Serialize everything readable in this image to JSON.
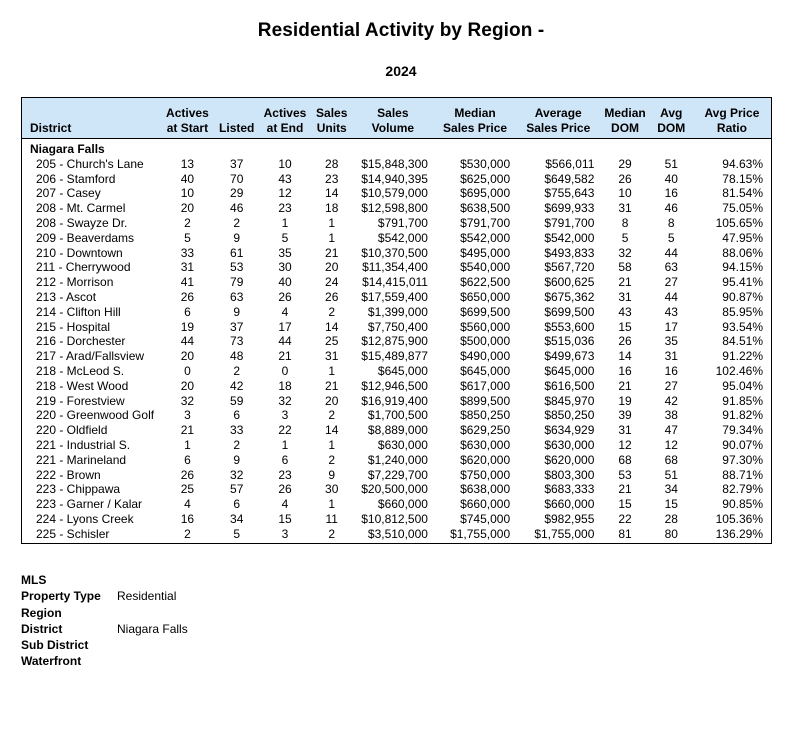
{
  "report": {
    "title": "Residential Activity by Region -",
    "year": "2024"
  },
  "table": {
    "headers": {
      "district": "District",
      "actives_start": [
        "Actives",
        "at Start"
      ],
      "listed": "Listed",
      "actives_end": [
        "Actives",
        "at End"
      ],
      "sales_units": [
        "Sales",
        "Units"
      ],
      "sales_volume": [
        "Sales",
        "Volume"
      ],
      "median_price": [
        "Median",
        "Sales Price"
      ],
      "avg_price": [
        "Average",
        "Sales Price"
      ],
      "median_dom": [
        "Median",
        "DOM"
      ],
      "avg_dom": [
        "Avg",
        "DOM"
      ],
      "avg_ratio": [
        "Avg Price",
        "Ratio"
      ]
    },
    "group": "Niagara Falls",
    "rows": [
      [
        "205 - Church's Lane",
        "13",
        "37",
        "10",
        "28",
        "$15,848,300",
        "$530,000",
        "$566,011",
        "29",
        "51",
        "94.63%"
      ],
      [
        "206 - Stamford",
        "40",
        "70",
        "43",
        "23",
        "$14,940,395",
        "$625,000",
        "$649,582",
        "26",
        "40",
        "78.15%"
      ],
      [
        "207 - Casey",
        "10",
        "29",
        "12",
        "14",
        "$10,579,000",
        "$695,000",
        "$755,643",
        "10",
        "16",
        "81.54%"
      ],
      [
        "208 - Mt. Carmel",
        "20",
        "46",
        "23",
        "18",
        "$12,598,800",
        "$638,500",
        "$699,933",
        "31",
        "46",
        "75.05%"
      ],
      [
        "208 - Swayze Dr.",
        "2",
        "2",
        "1",
        "1",
        "$791,700",
        "$791,700",
        "$791,700",
        "8",
        "8",
        "105.65%"
      ],
      [
        "209 - Beaverdams",
        "5",
        "9",
        "5",
        "1",
        "$542,000",
        "$542,000",
        "$542,000",
        "5",
        "5",
        "47.95%"
      ],
      [
        "210 - Downtown",
        "33",
        "61",
        "35",
        "21",
        "$10,370,500",
        "$495,000",
        "$493,833",
        "32",
        "44",
        "88.06%"
      ],
      [
        "211 - Cherrywood",
        "31",
        "53",
        "30",
        "20",
        "$11,354,400",
        "$540,000",
        "$567,720",
        "58",
        "63",
        "94.15%"
      ],
      [
        "212 - Morrison",
        "41",
        "79",
        "40",
        "24",
        "$14,415,011",
        "$622,500",
        "$600,625",
        "21",
        "27",
        "95.41%"
      ],
      [
        "213 - Ascot",
        "26",
        "63",
        "26",
        "26",
        "$17,559,400",
        "$650,000",
        "$675,362",
        "31",
        "44",
        "90.87%"
      ],
      [
        "214 - Clifton Hill",
        "6",
        "9",
        "4",
        "2",
        "$1,399,000",
        "$699,500",
        "$699,500",
        "43",
        "43",
        "85.95%"
      ],
      [
        "215 - Hospital",
        "19",
        "37",
        "17",
        "14",
        "$7,750,400",
        "$560,000",
        "$553,600",
        "15",
        "17",
        "93.54%"
      ],
      [
        "216 - Dorchester",
        "44",
        "73",
        "44",
        "25",
        "$12,875,900",
        "$500,000",
        "$515,036",
        "26",
        "35",
        "84.51%"
      ],
      [
        "217 - Arad/Fallsview",
        "20",
        "48",
        "21",
        "31",
        "$15,489,877",
        "$490,000",
        "$499,673",
        "14",
        "31",
        "91.22%"
      ],
      [
        "218 - McLeod S.",
        "0",
        "2",
        "0",
        "1",
        "$645,000",
        "$645,000",
        "$645,000",
        "16",
        "16",
        "102.46%"
      ],
      [
        "218 - West Wood",
        "20",
        "42",
        "18",
        "21",
        "$12,946,500",
        "$617,000",
        "$616,500",
        "21",
        "27",
        "95.04%"
      ],
      [
        "219 - Forestview",
        "32",
        "59",
        "32",
        "20",
        "$16,919,400",
        "$899,500",
        "$845,970",
        "19",
        "42",
        "91.85%"
      ],
      [
        "220 - Greenwood Golf",
        "3",
        "6",
        "3",
        "2",
        "$1,700,500",
        "$850,250",
        "$850,250",
        "39",
        "38",
        "91.82%"
      ],
      [
        "220 - Oldfield",
        "21",
        "33",
        "22",
        "14",
        "$8,889,000",
        "$629,250",
        "$634,929",
        "31",
        "47",
        "79.34%"
      ],
      [
        "221 - Industrial S.",
        "1",
        "2",
        "1",
        "1",
        "$630,000",
        "$630,000",
        "$630,000",
        "12",
        "12",
        "90.07%"
      ],
      [
        "221 - Marineland",
        "6",
        "9",
        "6",
        "2",
        "$1,240,000",
        "$620,000",
        "$620,000",
        "68",
        "68",
        "97.30%"
      ],
      [
        "222 - Brown",
        "26",
        "32",
        "23",
        "9",
        "$7,229,700",
        "$750,000",
        "$803,300",
        "53",
        "51",
        "88.71%"
      ],
      [
        "223 - Chippawa",
        "25",
        "57",
        "26",
        "30",
        "$20,500,000",
        "$638,000",
        "$683,333",
        "21",
        "34",
        "82.79%"
      ],
      [
        "223 - Garner / Kalar",
        "4",
        "6",
        "4",
        "1",
        "$660,000",
        "$660,000",
        "$660,000",
        "15",
        "15",
        "90.85%"
      ],
      [
        "224 - Lyons Creek",
        "16",
        "34",
        "15",
        "11",
        "$10,812,500",
        "$745,000",
        "$982,955",
        "22",
        "28",
        "105.36%"
      ],
      [
        "225 - Schisler",
        "2",
        "5",
        "3",
        "2",
        "$3,510,000",
        "$1,755,000",
        "$1,755,000",
        "81",
        "80",
        "136.29%"
      ]
    ]
  },
  "filters": [
    {
      "label": "MLS",
      "value": ""
    },
    {
      "label": "Property Type",
      "value": "Residential"
    },
    {
      "label": "Region",
      "value": ""
    },
    {
      "label": "District",
      "value": "Niagara Falls"
    },
    {
      "label": "Sub District",
      "value": ""
    },
    {
      "label": "Waterfront",
      "value": ""
    }
  ]
}
